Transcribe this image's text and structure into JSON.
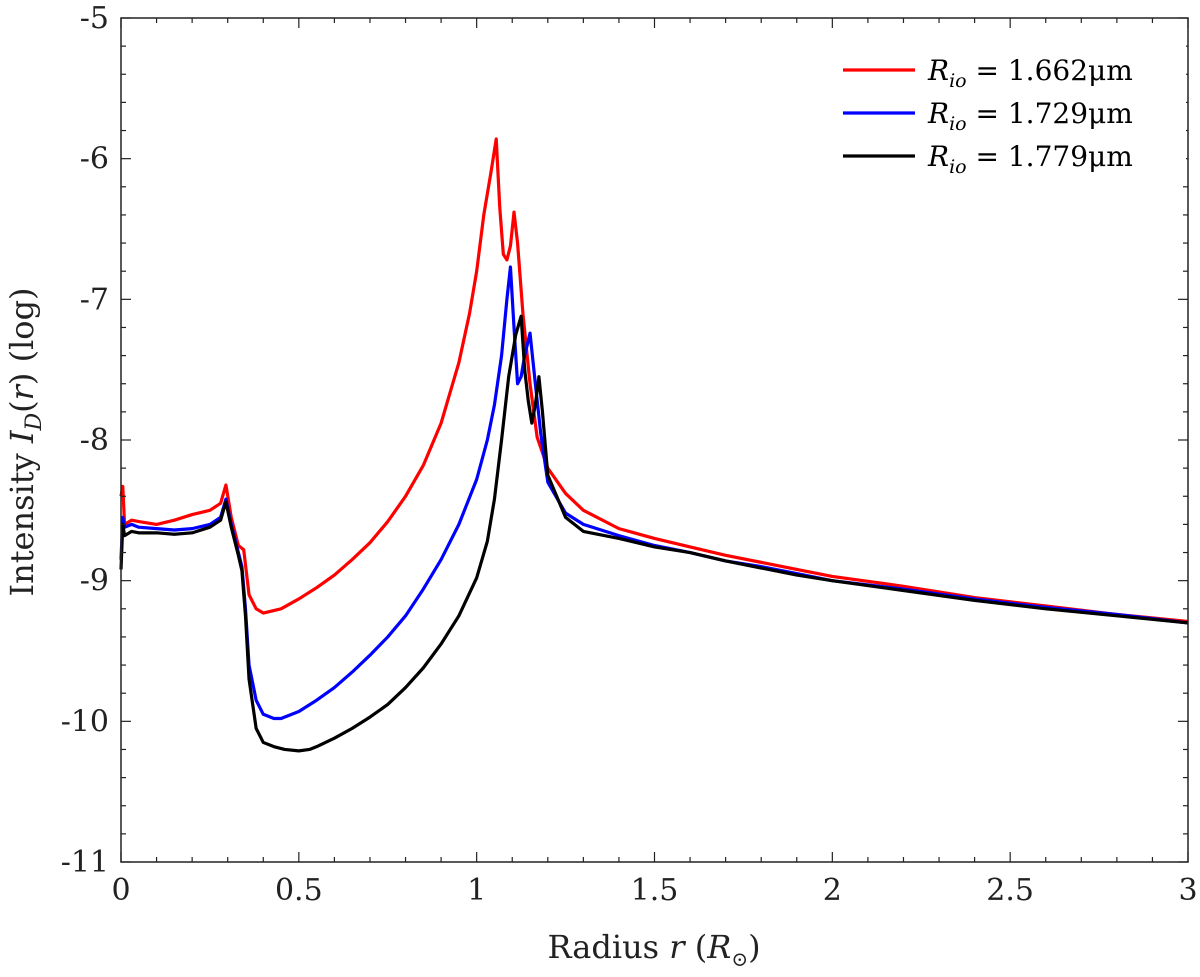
{
  "chart_data": {
    "type": "line",
    "title": "",
    "xlabel": "Radius r (R⊙)",
    "ylabel": "Intensity I_D(r) (log)",
    "xlim": [
      0,
      3
    ],
    "ylim": [
      -11,
      -5
    ],
    "xticks": [
      0,
      0.5,
      1,
      1.5,
      2,
      2.5,
      3
    ],
    "xtick_labels": [
      "0",
      "0.5",
      "1",
      "1.5",
      "2",
      "2.5",
      "3"
    ],
    "yticks": [
      -11,
      -10,
      -9,
      -8,
      -7,
      -6,
      -5
    ],
    "ytick_labels": [
      "-11",
      "-10",
      "-9",
      "-8",
      "-7",
      "-6",
      "-5"
    ],
    "grid": false,
    "legend_position": "top-right",
    "series": [
      {
        "name": "R_io = 1.662μm",
        "legend_label": "R",
        "legend_sub": "io",
        "legend_value": " = 1.662μm",
        "color": "#ff0000",
        "x": [
          0,
          0.005,
          0.01,
          0.03,
          0.05,
          0.1,
          0.15,
          0.2,
          0.25,
          0.28,
          0.295,
          0.31,
          0.33,
          0.345,
          0.36,
          0.38,
          0.4,
          0.45,
          0.5,
          0.55,
          0.6,
          0.65,
          0.7,
          0.75,
          0.8,
          0.85,
          0.9,
          0.95,
          0.98,
          1.0,
          1.02,
          1.04,
          1.055,
          1.065,
          1.075,
          1.085,
          1.095,
          1.105,
          1.115,
          1.13,
          1.15,
          1.17,
          1.2,
          1.25,
          1.3,
          1.4,
          1.5,
          1.6,
          1.7,
          1.8,
          1.9,
          2.0,
          2.2,
          2.4,
          2.6,
          2.8,
          3.0
        ],
        "y": [
          -8.4,
          -8.33,
          -8.6,
          -8.57,
          -8.58,
          -8.6,
          -8.57,
          -8.53,
          -8.5,
          -8.45,
          -8.32,
          -8.55,
          -8.75,
          -8.78,
          -9.1,
          -9.2,
          -9.23,
          -9.2,
          -9.13,
          -9.05,
          -8.96,
          -8.85,
          -8.73,
          -8.58,
          -8.4,
          -8.18,
          -7.88,
          -7.45,
          -7.1,
          -6.8,
          -6.4,
          -6.1,
          -5.86,
          -6.35,
          -6.68,
          -6.72,
          -6.62,
          -6.38,
          -6.6,
          -7.1,
          -7.6,
          -7.98,
          -8.2,
          -8.38,
          -8.5,
          -8.63,
          -8.7,
          -8.76,
          -8.82,
          -8.87,
          -8.92,
          -8.97,
          -9.04,
          -9.12,
          -9.18,
          -9.24,
          -9.29
        ]
      },
      {
        "name": "R_io = 1.729μm",
        "legend_label": "R",
        "legend_sub": "io",
        "legend_value": " = 1.729μm",
        "color": "#0000ff",
        "x": [
          0,
          0.005,
          0.01,
          0.03,
          0.05,
          0.1,
          0.15,
          0.2,
          0.25,
          0.28,
          0.295,
          0.31,
          0.33,
          0.34,
          0.35,
          0.36,
          0.38,
          0.4,
          0.43,
          0.45,
          0.5,
          0.55,
          0.6,
          0.65,
          0.7,
          0.75,
          0.8,
          0.85,
          0.9,
          0.95,
          1.0,
          1.03,
          1.05,
          1.07,
          1.085,
          1.095,
          1.105,
          1.115,
          1.125,
          1.135,
          1.15,
          1.165,
          1.18,
          1.2,
          1.25,
          1.3,
          1.4,
          1.5,
          1.6,
          1.7,
          1.8,
          1.9,
          2.0,
          2.2,
          2.4,
          2.6,
          2.8,
          3.0
        ],
        "y": [
          -8.85,
          -8.55,
          -8.62,
          -8.6,
          -8.62,
          -8.63,
          -8.64,
          -8.63,
          -8.6,
          -8.55,
          -8.42,
          -8.6,
          -8.8,
          -8.9,
          -9.2,
          -9.6,
          -9.85,
          -9.95,
          -9.98,
          -9.98,
          -9.93,
          -9.85,
          -9.76,
          -9.65,
          -9.53,
          -9.4,
          -9.25,
          -9.06,
          -8.85,
          -8.6,
          -8.28,
          -8.0,
          -7.75,
          -7.4,
          -7.0,
          -6.77,
          -7.2,
          -7.6,
          -7.55,
          -7.4,
          -7.24,
          -7.6,
          -7.95,
          -8.3,
          -8.52,
          -8.6,
          -8.68,
          -8.75,
          -8.8,
          -8.86,
          -8.9,
          -8.95,
          -9.0,
          -9.06,
          -9.13,
          -9.19,
          -9.24,
          -9.3
        ]
      },
      {
        "name": "R_io = 1.779μm",
        "legend_label": "R",
        "legend_sub": "io",
        "legend_value": " = 1.779μm",
        "color": "#000000",
        "x": [
          0,
          0.005,
          0.01,
          0.03,
          0.05,
          0.1,
          0.15,
          0.2,
          0.25,
          0.28,
          0.295,
          0.31,
          0.33,
          0.34,
          0.35,
          0.36,
          0.38,
          0.4,
          0.43,
          0.46,
          0.5,
          0.53,
          0.55,
          0.6,
          0.65,
          0.7,
          0.75,
          0.8,
          0.85,
          0.9,
          0.95,
          1.0,
          1.03,
          1.05,
          1.07,
          1.09,
          1.11,
          1.125,
          1.135,
          1.145,
          1.155,
          1.165,
          1.175,
          1.185,
          1.2,
          1.25,
          1.3,
          1.4,
          1.5,
          1.6,
          1.7,
          1.8,
          1.9,
          2.0,
          2.2,
          2.4,
          2.6,
          2.8,
          3.0
        ],
        "y": [
          -8.92,
          -8.6,
          -8.68,
          -8.65,
          -8.66,
          -8.66,
          -8.67,
          -8.66,
          -8.62,
          -8.57,
          -8.44,
          -8.62,
          -8.82,
          -8.93,
          -9.25,
          -9.7,
          -10.05,
          -10.15,
          -10.18,
          -10.2,
          -10.21,
          -10.2,
          -10.18,
          -10.12,
          -10.05,
          -9.97,
          -9.88,
          -9.76,
          -9.62,
          -9.45,
          -9.25,
          -8.98,
          -8.72,
          -8.42,
          -8.0,
          -7.55,
          -7.25,
          -7.12,
          -7.5,
          -7.72,
          -7.88,
          -7.75,
          -7.55,
          -7.8,
          -8.25,
          -8.55,
          -8.65,
          -8.7,
          -8.76,
          -8.8,
          -8.86,
          -8.91,
          -8.96,
          -9.0,
          -9.07,
          -9.14,
          -9.2,
          -9.25,
          -9.3
        ]
      }
    ]
  }
}
